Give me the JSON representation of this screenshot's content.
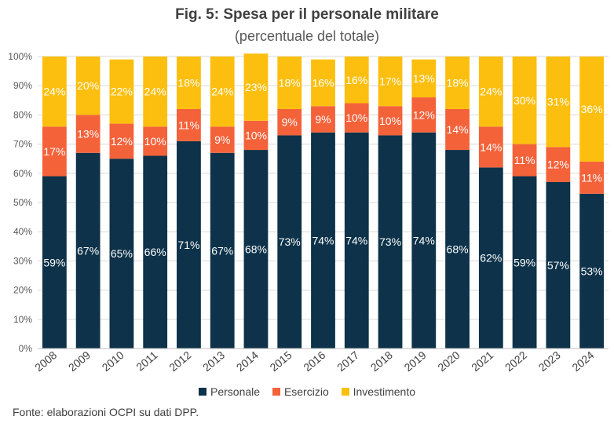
{
  "chart_data": {
    "type": "bar",
    "stacked": true,
    "title": "Fig. 5: Spesa per il personale militare",
    "subtitle": "(percentuale del totale)",
    "categories": [
      "2008",
      "2009",
      "2010",
      "2011",
      "2012",
      "2013",
      "2014",
      "2015",
      "2016",
      "2017",
      "2018",
      "2019",
      "2020",
      "2021",
      "2022",
      "2023",
      "2024"
    ],
    "series": [
      {
        "name": "Personale",
        "color": "#0d3249",
        "values": [
          59,
          67,
          65,
          66,
          71,
          67,
          68,
          73,
          74,
          74,
          73,
          74,
          68,
          62,
          59,
          57,
          53
        ]
      },
      {
        "name": "Esercizio",
        "color": "#f4623a",
        "values": [
          17,
          13,
          12,
          10,
          11,
          9,
          10,
          9,
          9,
          10,
          10,
          12,
          14,
          14,
          11,
          12,
          11
        ]
      },
      {
        "name": "Investimento",
        "color": "#fcbf0f",
        "values": [
          24,
          20,
          22,
          24,
          18,
          24,
          23,
          18,
          16,
          16,
          17,
          13,
          18,
          24,
          30,
          31,
          36
        ]
      }
    ],
    "y_ticks": [
      "0%",
      "10%",
      "20%",
      "30%",
      "40%",
      "50%",
      "60%",
      "70%",
      "80%",
      "90%",
      "100%"
    ],
    "ylim": [
      0,
      100
    ],
    "grid": true,
    "legend_position": "bottom",
    "value_suffix": "%"
  },
  "source": "Fonte: elaborazioni OCPI su dati DPP."
}
